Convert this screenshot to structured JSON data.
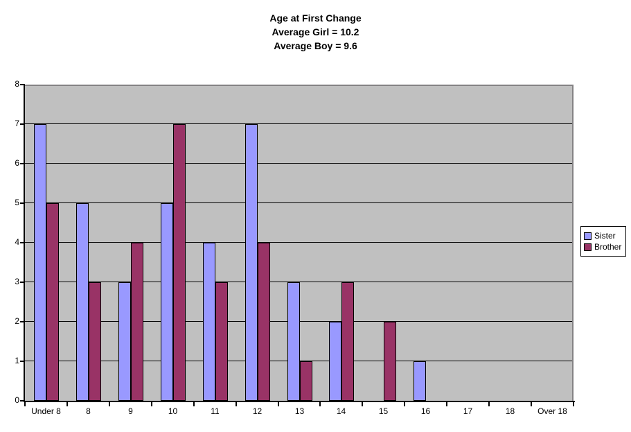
{
  "title": {
    "line1": "Age at First Change",
    "line2": "Average Girl = 10.2",
    "line3": "Average Boy = 9.6"
  },
  "chart_data": {
    "type": "bar",
    "title": "Age at First Change",
    "subtitle": [
      "Average Girl = 10.2",
      "Average Boy = 9.6"
    ],
    "categories": [
      "Under 8",
      "8",
      "9",
      "10",
      "11",
      "12",
      "13",
      "14",
      "15",
      "16",
      "17",
      "18",
      "Over 18"
    ],
    "series": [
      {
        "name": "Sister",
        "color": "#9999FF",
        "values": [
          7,
          5,
          3,
          5,
          4,
          7,
          3,
          2,
          0,
          1,
          0,
          0,
          0
        ]
      },
      {
        "name": "Brother",
        "color": "#993366",
        "values": [
          5,
          3,
          4,
          7,
          3,
          4,
          1,
          3,
          2,
          0,
          0,
          0,
          0
        ]
      }
    ],
    "xlabel": "",
    "ylabel": "",
    "ylim": [
      0,
      8
    ],
    "yticks": [
      "0",
      "1",
      "2",
      "3",
      "4",
      "5",
      "6",
      "7",
      "8"
    ],
    "grid": true,
    "legend_position": "right",
    "colors": {
      "plot_background": "#C0C0C0",
      "gridline": "#000000",
      "plot_border": "#848284",
      "axis": "#000000",
      "text": "#000000",
      "page_background": "#FFFFFF"
    }
  }
}
